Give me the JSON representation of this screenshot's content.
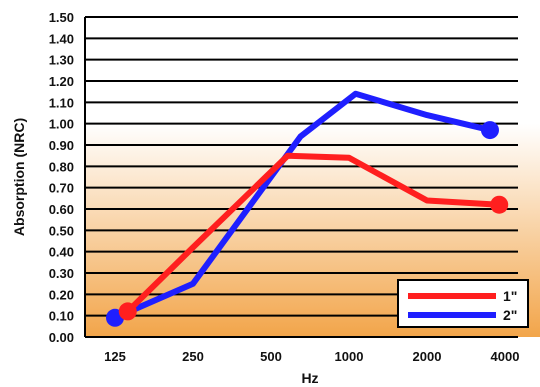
{
  "chart_data": {
    "type": "line",
    "xlabel": "Hz",
    "ylabel": "Absorption (NRC)",
    "x_ticks": [
      "125",
      "250",
      "500",
      "1000",
      "2000",
      "4000"
    ],
    "y_ticks": [
      "0.00",
      "0.10",
      "0.20",
      "0.30",
      "0.40",
      "0.50",
      "0.60",
      "0.70",
      "0.80",
      "0.90",
      "1.00",
      "1.10",
      "1.20",
      "1.30",
      "1.40",
      "1.50"
    ],
    "ylim": [
      0,
      1.5
    ],
    "x_scale": "log2",
    "xlim": [
      125,
      4000
    ],
    "grid": "horizontal",
    "legend_position": "bottom-right",
    "background": {
      "top_color": "#ffffff",
      "bottom_color": "#f2a54a",
      "fade_top_value": 1.0
    },
    "series": [
      {
        "name": "1\"",
        "color": "#ff1f1f",
        "x": [
          140,
          250,
          580,
          1000,
          2000,
          3800
        ],
        "values": [
          0.12,
          0.42,
          0.85,
          0.84,
          0.64,
          0.62
        ],
        "start_marker": true,
        "end_marker": true
      },
      {
        "name": "2\"",
        "color": "#1f1fff",
        "x": [
          125,
          250,
          650,
          1060,
          2000,
          3500
        ],
        "values": [
          0.09,
          0.25,
          0.94,
          1.14,
          1.04,
          0.97
        ],
        "start_marker": true,
        "end_marker": true
      }
    ]
  }
}
